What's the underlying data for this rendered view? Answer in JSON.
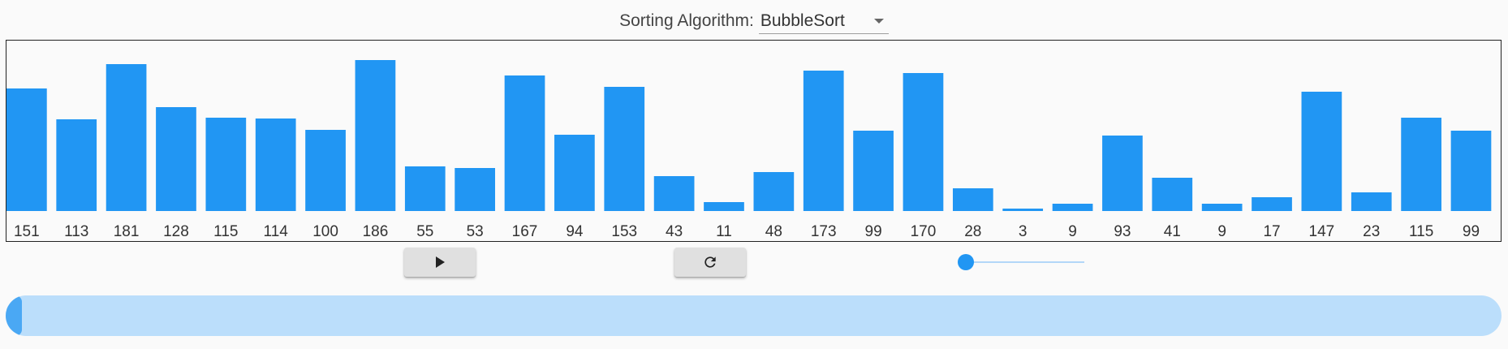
{
  "header": {
    "algorithm_label": "Sorting Algorithm:",
    "algorithm_selected": "BubbleSort"
  },
  "chart_data": {
    "type": "bar",
    "title": "",
    "xlabel": "",
    "ylabel": "",
    "ylim": [
      0,
      200
    ],
    "bar_color": "#2196f3",
    "values": [
      151,
      113,
      181,
      128,
      115,
      114,
      100,
      186,
      55,
      53,
      167,
      94,
      153,
      43,
      11,
      48,
      173,
      99,
      170,
      28,
      3,
      9,
      93,
      41,
      9,
      17,
      147,
      23,
      115,
      99
    ],
    "categories": [
      "151",
      "113",
      "181",
      "128",
      "115",
      "114",
      "100",
      "186",
      "55",
      "53",
      "167",
      "94",
      "153",
      "43",
      "11",
      "48",
      "173",
      "99",
      "170",
      "28",
      "3",
      "9",
      "93",
      "41",
      "9",
      "17",
      "147",
      "23",
      "115",
      "99"
    ]
  },
  "controls": {
    "play_icon": "play-icon",
    "reset_icon": "reset-icon",
    "speed_level": 0,
    "progress_fraction": 0,
    "accent_color": "#2196f3",
    "track_color": "#bbdefb"
  }
}
